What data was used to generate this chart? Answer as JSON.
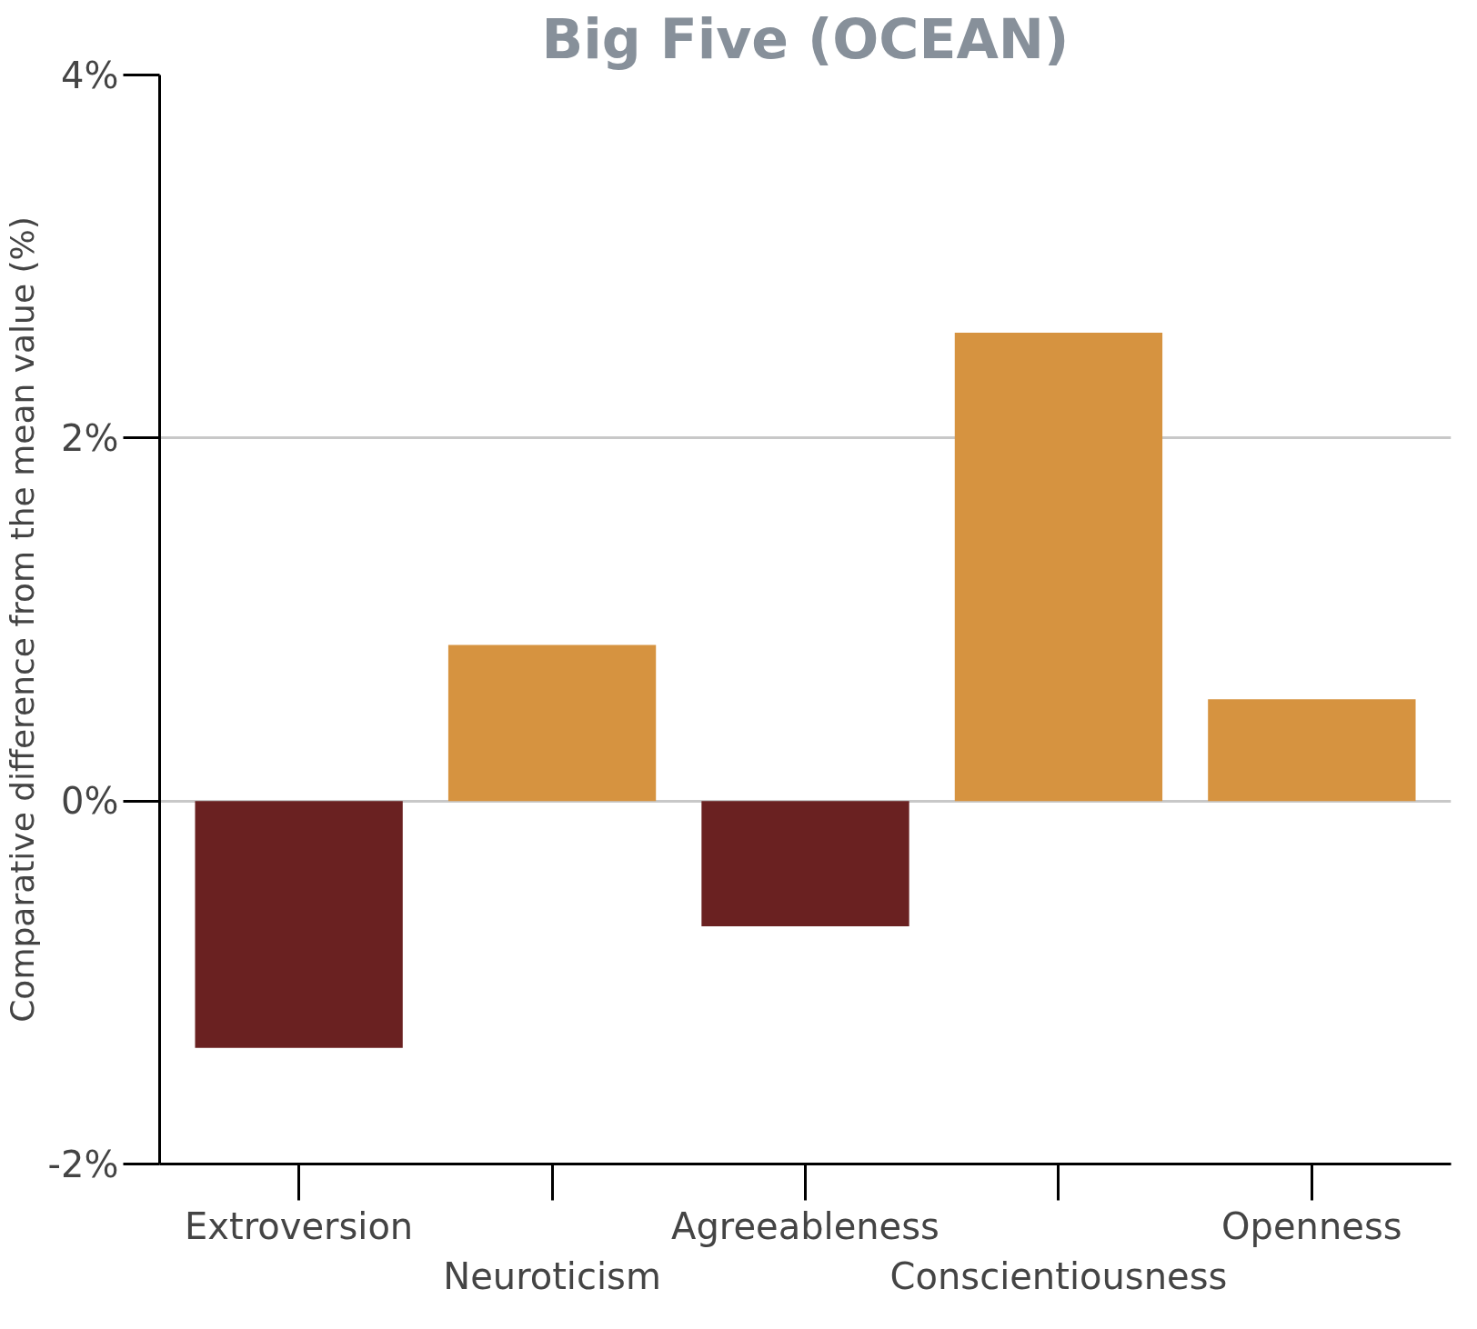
{
  "chart_data": {
    "type": "bar",
    "title": "Big Five (OCEAN)",
    "ylabel": "Comparative difference from the mean value (%)",
    "categories": [
      "Extroversion",
      "Neuroticism",
      "Agreeableness",
      "Conscientiousness",
      "Openness"
    ],
    "values": [
      -1.36,
      0.86,
      -0.69,
      2.58,
      0.56
    ],
    "colors": [
      "#6a2121",
      "#d69340",
      "#6a2121",
      "#d69340",
      "#d69340"
    ],
    "ylim": [
      -2,
      4
    ],
    "yticks": [
      {
        "value": -2,
        "label": "-2%"
      },
      {
        "value": 0,
        "label": "0%"
      },
      {
        "value": 2,
        "label": "2%"
      },
      {
        "value": 4,
        "label": "4%"
      }
    ],
    "grid": "y"
  }
}
